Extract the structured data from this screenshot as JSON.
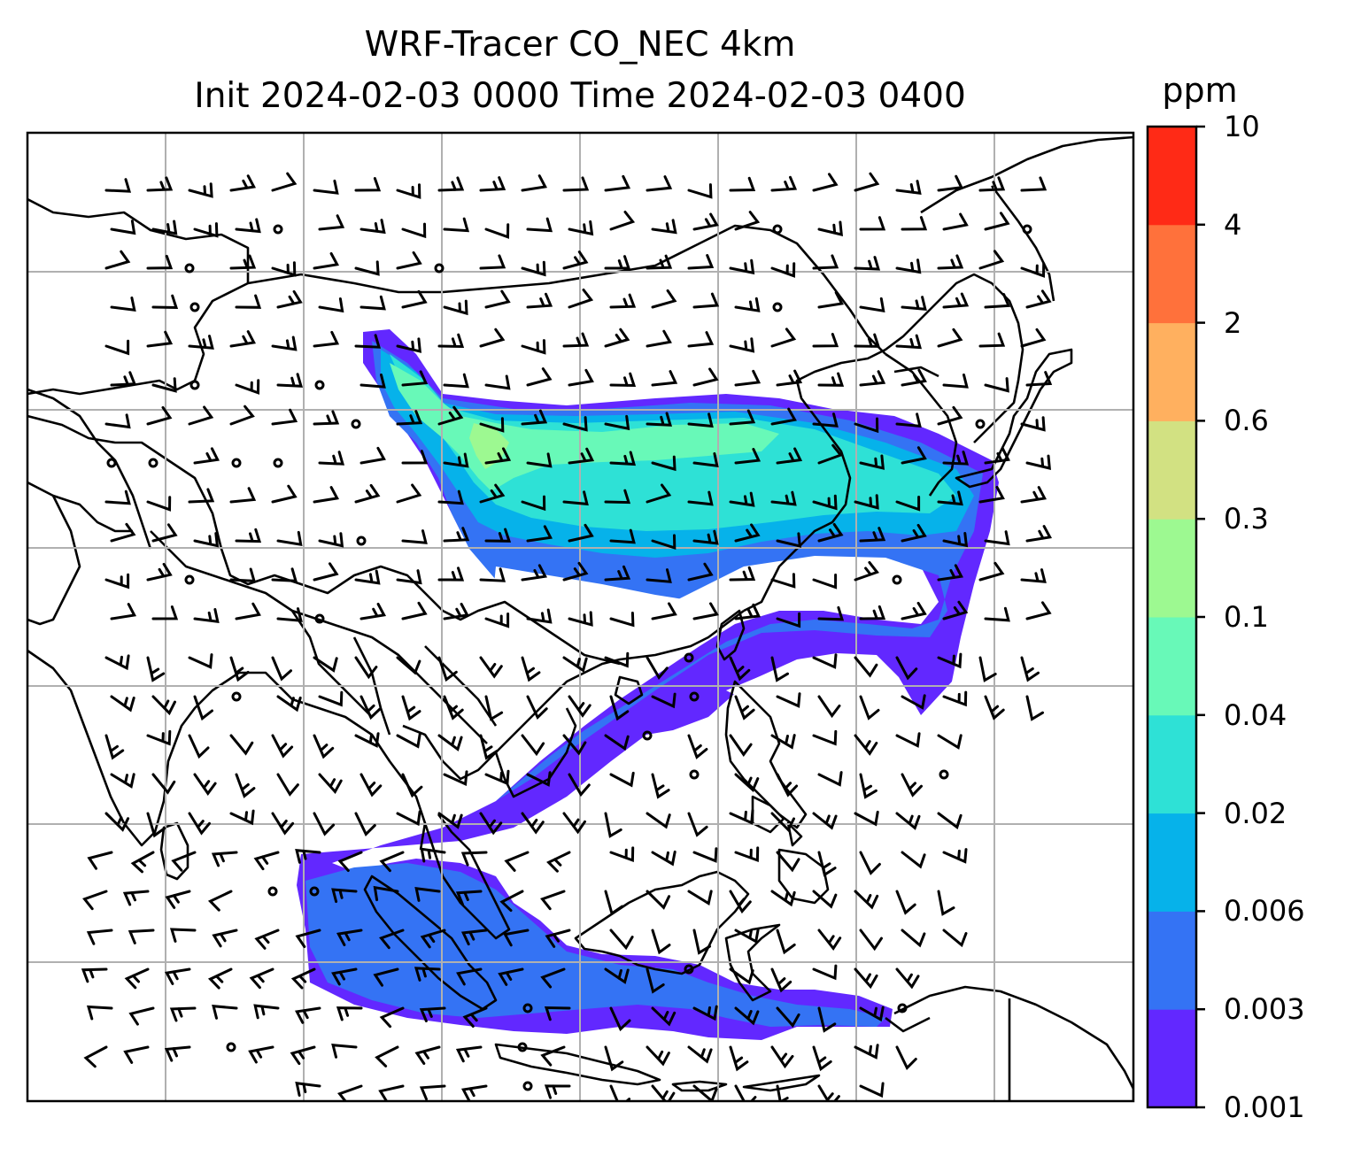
{
  "map": {
    "title_line1": "WRF-Tracer CO_NEC 4km",
    "title_line2": "Init 2024-02-03 0000 Time 2024-02-03 0400",
    "gridlines": true,
    "features": [
      "coastlines",
      "country-borders",
      "wind-barbs",
      "calm-wind-circles",
      "tracer-concentration-fill"
    ]
  },
  "colorbar": {
    "unit": "ppm",
    "levels": [
      "0.001",
      "0.003",
      "0.006",
      "0.02",
      "0.04",
      "0.1",
      "0.3",
      "0.6",
      "2",
      "4",
      "10"
    ],
    "colors": [
      "#6228ff",
      "#3473f4",
      "#06b2ea",
      "#2ee1d6",
      "#68f9b8",
      "#9df991",
      "#d2e182",
      "#ffb05f",
      "#ff713b",
      "#ff2a16"
    ]
  }
}
